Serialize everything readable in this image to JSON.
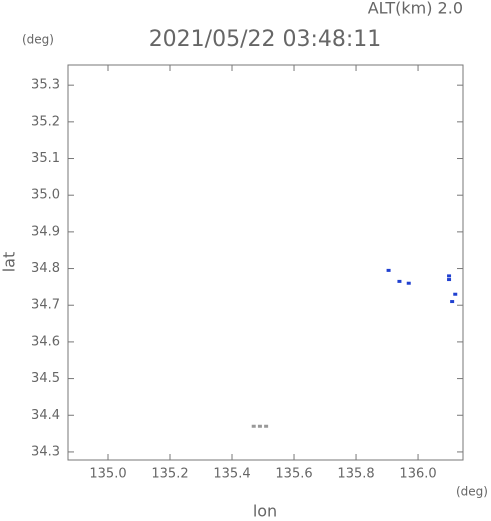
{
  "chart_data": {
    "type": "scatter",
    "title": "2021/05/22 03:48:11",
    "altitude_label": "ALT(km) 2.0",
    "y_unit": "(deg)",
    "x_unit": "(deg)",
    "x_label": "lon",
    "y_label": "lat",
    "xlim": [
      134.871,
      136.145
    ],
    "ylim": [
      34.278,
      35.355
    ],
    "xticks": [
      {
        "value": 135.0,
        "label": "135.0"
      },
      135.2,
      135.4,
      135.6,
      135.8,
      {
        "value": 136.0,
        "label": "136.0"
      }
    ],
    "yticks": [
      34.3,
      34.4,
      34.5,
      34.6,
      34.7,
      34.8,
      34.9,
      {
        "value": 35.0,
        "label": "35.0"
      },
      35.1,
      35.2,
      35.3
    ],
    "series": [
      {
        "color": "#2040d0",
        "x": [
          135.905,
          135.94,
          135.97,
          136.1,
          136.1,
          136.12,
          136.11
        ],
        "y": [
          34.795,
          34.765,
          34.76,
          34.78,
          34.77,
          34.73,
          34.71
        ]
      },
      {
        "color": "#999999",
        "x": [
          135.47,
          135.49,
          135.51
        ],
        "y": [
          34.37,
          34.37,
          34.37
        ]
      }
    ]
  }
}
